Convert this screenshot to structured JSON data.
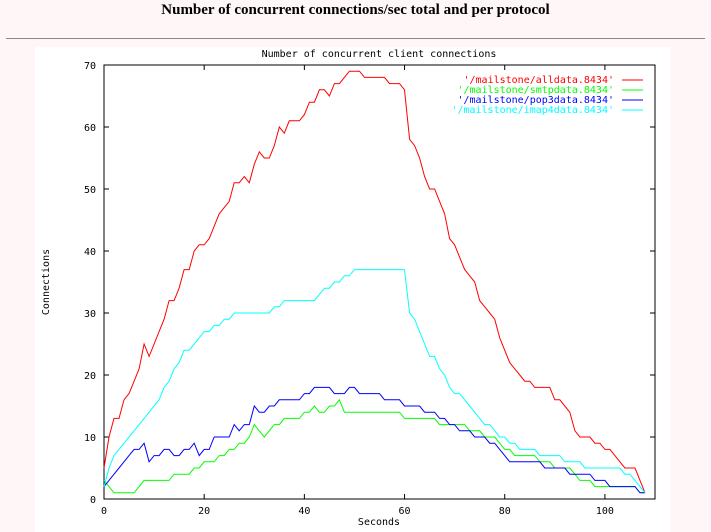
{
  "page": {
    "title": "Number of concurrent connections/sec total and per protocol"
  },
  "chart_data": {
    "type": "line",
    "title": "Number of concurrent client connections",
    "xlabel": "Seconds",
    "ylabel": "Connections",
    "xlim": [
      0,
      110
    ],
    "ylim": [
      0,
      70
    ],
    "xticks": [
      0,
      20,
      40,
      60,
      80,
      100
    ],
    "yticks": [
      0,
      10,
      20,
      30,
      40,
      50,
      60,
      70
    ],
    "grid": false,
    "legend": "top-right",
    "series": [
      {
        "name": "'/mailstone/alldata.8434'",
        "color": "#ff0000",
        "x": [
          0,
          1,
          2,
          3,
          4,
          5,
          6,
          7,
          8,
          9,
          10,
          11,
          12,
          13,
          14,
          15,
          16,
          17,
          18,
          19,
          20,
          21,
          22,
          23,
          24,
          25,
          26,
          27,
          28,
          29,
          30,
          31,
          32,
          33,
          34,
          35,
          36,
          37,
          38,
          39,
          40,
          41,
          42,
          43,
          44,
          45,
          46,
          47,
          48,
          49,
          50,
          51,
          52,
          53,
          54,
          55,
          56,
          57,
          58,
          59,
          60,
          61,
          62,
          63,
          64,
          65,
          66,
          67,
          68,
          69,
          70,
          71,
          72,
          73,
          74,
          75,
          76,
          77,
          78,
          79,
          80,
          81,
          82,
          83,
          84,
          85,
          86,
          87,
          88,
          89,
          90,
          91,
          92,
          93,
          94,
          95,
          96,
          97,
          98,
          99,
          100,
          101,
          102,
          103,
          104,
          105,
          106,
          107,
          108
        ],
        "y": [
          5,
          10,
          13,
          13,
          16,
          17,
          19,
          21,
          25,
          23,
          25,
          27,
          29,
          32,
          32,
          34,
          37,
          37,
          40,
          41,
          41,
          42,
          44,
          46,
          47,
          48,
          51,
          51,
          52,
          51,
          54,
          56,
          55,
          55,
          57,
          60,
          59,
          61,
          61,
          61,
          62,
          64,
          64,
          66,
          66,
          65,
          67,
          67,
          68,
          69,
          69,
          69,
          68,
          68,
          68,
          68,
          68,
          67,
          67,
          67,
          66,
          58,
          57,
          55,
          52,
          50,
          50,
          48,
          46,
          42,
          41,
          39,
          37,
          36,
          35,
          32,
          31,
          30,
          29,
          26,
          24,
          22,
          21,
          20,
          19,
          19,
          18,
          18,
          18,
          18,
          16,
          16,
          15,
          14,
          11,
          10,
          10,
          10,
          9,
          9,
          8,
          8,
          7,
          6,
          5,
          5,
          5,
          3,
          1
        ]
      },
      {
        "name": "'/mailstone/smtpdata.8434'",
        "color": "#00ff00",
        "x": [
          0,
          1,
          2,
          3,
          4,
          5,
          6,
          7,
          8,
          9,
          10,
          11,
          12,
          13,
          14,
          15,
          16,
          17,
          18,
          19,
          20,
          21,
          22,
          23,
          24,
          25,
          26,
          27,
          28,
          29,
          30,
          31,
          32,
          33,
          34,
          35,
          36,
          37,
          38,
          39,
          40,
          41,
          42,
          43,
          44,
          45,
          46,
          47,
          48,
          49,
          50,
          51,
          52,
          53,
          54,
          55,
          56,
          57,
          58,
          59,
          60,
          61,
          62,
          63,
          64,
          65,
          66,
          67,
          68,
          69,
          70,
          71,
          72,
          73,
          74,
          75,
          76,
          77,
          78,
          79,
          80,
          81,
          82,
          83,
          84,
          85,
          86,
          87,
          88,
          89,
          90,
          91,
          92,
          93,
          94,
          95,
          96,
          97,
          98,
          99,
          100,
          101,
          102,
          103,
          104,
          105,
          106,
          107,
          108
        ],
        "y": [
          3,
          2,
          1,
          1,
          1,
          1,
          1,
          2,
          3,
          3,
          3,
          3,
          3,
          3,
          4,
          4,
          4,
          4,
          5,
          5,
          6,
          6,
          6,
          7,
          7,
          8,
          8,
          9,
          9,
          10,
          12,
          11,
          10,
          11,
          12,
          12,
          13,
          13,
          13,
          13,
          14,
          14,
          15,
          14,
          14,
          15,
          15,
          16,
          14,
          14,
          14,
          14,
          14,
          14,
          14,
          14,
          14,
          14,
          14,
          14,
          13,
          13,
          13,
          13,
          13,
          13,
          13,
          12,
          12,
          12,
          12,
          12,
          12,
          11,
          11,
          11,
          10,
          10,
          10,
          9,
          8,
          8,
          7,
          7,
          7,
          7,
          7,
          6,
          6,
          6,
          5,
          5,
          5,
          5,
          4,
          3,
          3,
          3,
          2,
          2,
          2,
          2,
          2,
          2,
          2,
          2,
          2,
          1,
          1
        ]
      },
      {
        "name": "'/mailstone/pop3data.8434'",
        "color": "#0000ff",
        "x": [
          0,
          1,
          2,
          3,
          4,
          5,
          6,
          7,
          8,
          9,
          10,
          11,
          12,
          13,
          14,
          15,
          16,
          17,
          18,
          19,
          20,
          21,
          22,
          23,
          24,
          25,
          26,
          27,
          28,
          29,
          30,
          31,
          32,
          33,
          34,
          35,
          36,
          37,
          38,
          39,
          40,
          41,
          42,
          43,
          44,
          45,
          46,
          47,
          48,
          49,
          50,
          51,
          52,
          53,
          54,
          55,
          56,
          57,
          58,
          59,
          60,
          61,
          62,
          63,
          64,
          65,
          66,
          67,
          68,
          69,
          70,
          71,
          72,
          73,
          74,
          75,
          76,
          77,
          78,
          79,
          80,
          81,
          82,
          83,
          84,
          85,
          86,
          87,
          88,
          89,
          90,
          91,
          92,
          93,
          94,
          95,
          96,
          97,
          98,
          99,
          100,
          101,
          102,
          103,
          104,
          105,
          106,
          107,
          108
        ],
        "y": [
          2,
          3,
          4,
          5,
          6,
          7,
          8,
          8,
          9,
          6,
          7,
          7,
          8,
          8,
          7,
          7,
          8,
          8,
          9,
          7,
          8,
          8,
          10,
          10,
          10,
          10,
          12,
          11,
          12,
          12,
          15,
          14,
          14,
          15,
          15,
          16,
          16,
          16,
          16,
          16,
          17,
          17,
          18,
          18,
          18,
          18,
          17,
          17,
          17,
          18,
          18,
          17,
          17,
          17,
          17,
          17,
          16,
          16,
          16,
          16,
          15,
          15,
          15,
          15,
          14,
          14,
          14,
          13,
          13,
          12,
          12,
          11,
          11,
          11,
          10,
          10,
          10,
          9,
          9,
          8,
          7,
          6,
          6,
          6,
          6,
          6,
          6,
          6,
          5,
          5,
          5,
          5,
          5,
          4,
          4,
          4,
          4,
          4,
          3,
          3,
          3,
          2,
          2,
          2,
          2,
          2,
          2,
          1,
          1
        ]
      },
      {
        "name": "'/mailstone/imap4data.8434'",
        "color": "#00ffff",
        "x": [
          0,
          1,
          2,
          3,
          4,
          5,
          6,
          7,
          8,
          9,
          10,
          11,
          12,
          13,
          14,
          15,
          16,
          17,
          18,
          19,
          20,
          21,
          22,
          23,
          24,
          25,
          26,
          27,
          28,
          29,
          30,
          31,
          32,
          33,
          34,
          35,
          36,
          37,
          38,
          39,
          40,
          41,
          42,
          43,
          44,
          45,
          46,
          47,
          48,
          49,
          50,
          51,
          52,
          53,
          54,
          55,
          56,
          57,
          58,
          59,
          60,
          61,
          62,
          63,
          64,
          65,
          66,
          67,
          68,
          69,
          70,
          71,
          72,
          73,
          74,
          75,
          76,
          77,
          78,
          79,
          80,
          81,
          82,
          83,
          84,
          85,
          86,
          87,
          88,
          89,
          90,
          91,
          92,
          93,
          94,
          95,
          96,
          97,
          98,
          99,
          100,
          101,
          102,
          103,
          104,
          105,
          106,
          107,
          108
        ],
        "y": [
          2,
          5,
          7,
          8,
          9,
          10,
          11,
          12,
          13,
          14,
          15,
          16,
          18,
          19,
          21,
          22,
          24,
          24,
          25,
          26,
          27,
          27,
          28,
          28,
          29,
          29,
          30,
          30,
          30,
          30,
          30,
          30,
          30,
          30,
          31,
          31,
          32,
          32,
          32,
          32,
          32,
          32,
          32,
          33,
          34,
          34,
          35,
          35,
          36,
          36,
          37,
          37,
          37,
          37,
          37,
          37,
          37,
          37,
          37,
          37,
          37,
          30,
          29,
          27,
          25,
          23,
          23,
          21,
          20,
          18,
          17,
          17,
          16,
          15,
          14,
          13,
          12,
          12,
          11,
          10,
          10,
          9,
          9,
          8,
          8,
          8,
          8,
          7,
          7,
          7,
          7,
          7,
          6,
          6,
          6,
          6,
          5,
          5,
          5,
          5,
          5,
          5,
          5,
          5,
          4,
          4,
          3,
          2,
          1
        ]
      }
    ]
  }
}
